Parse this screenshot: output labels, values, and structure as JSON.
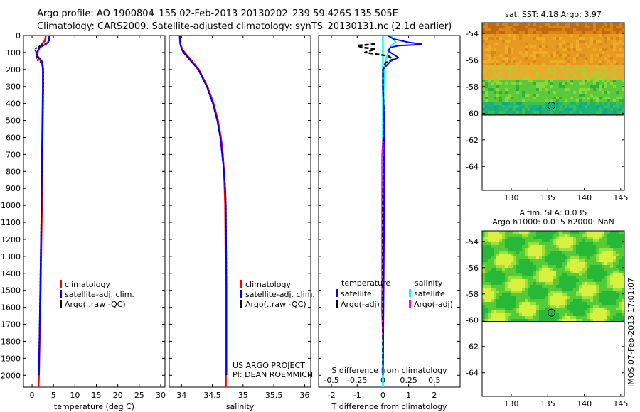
{
  "title_line1": "Argo profile: AO 1900804_155 02-Feb-2013 20130202_239 59.426S 135.505E",
  "title_line2": "Climatology: CARS2009. Satellite-adjusted climatology: synTS_20130131.nc (2.1d earlier)",
  "credit_line1": "US ARGO PROJECT",
  "credit_line2": "PI: DEAN ROEMMICH",
  "timestamp": "IMOS 07-Feb-2013 17:01:07",
  "colors": {
    "climatology": "#ff0000",
    "satellite": "#0000ff",
    "argo": "#000000",
    "sal_satellite": "#00ffff",
    "sal_argo": "#ff00ff"
  },
  "chart_data": [
    {
      "type": "line",
      "xlabel": "temperature (deg C)",
      "xlim": [
        -2,
        31
      ],
      "xticks": [
        0,
        5,
        10,
        15,
        20,
        25,
        30
      ],
      "ylim": [
        2070,
        0
      ],
      "yticks": [
        0,
        100,
        200,
        300,
        400,
        500,
        600,
        700,
        800,
        900,
        1000,
        1100,
        1200,
        1300,
        1400,
        1500,
        1600,
        1700,
        1800,
        1900,
        2000
      ],
      "legend": [
        "climatology",
        "satellite-adj. clim.",
        "Argo(..raw -QC)"
      ],
      "series": [
        {
          "name": "climatology",
          "depth": [
            0,
            30,
            60,
            90,
            120,
            140,
            160,
            200,
            300,
            500,
            700,
            1000,
            1500,
            2000,
            2070
          ],
          "values": [
            3.2,
            3.0,
            2.0,
            1.4,
            1.1,
            1.8,
            2.4,
            2.6,
            2.6,
            2.5,
            2.4,
            2.3,
            2.0,
            1.6,
            1.5
          ]
        },
        {
          "name": "satellite-adj. clim.",
          "depth": [
            0,
            30,
            50,
            70,
            90,
            110,
            130,
            150,
            200,
            300,
            500,
            700,
            1000,
            1500,
            2000
          ],
          "values": [
            4.0,
            4.0,
            3.3,
            1.8,
            1.3,
            1.0,
            1.6,
            2.3,
            2.5,
            2.5,
            2.4,
            2.3,
            2.2,
            1.9,
            1.6
          ]
        },
        {
          "name": "Argo(..raw -QC)",
          "depth": [
            10,
            40,
            60,
            80,
            100,
            120,
            140,
            160,
            200,
            300,
            500,
            700,
            1000,
            1500,
            1950
          ],
          "values": [
            3.9,
            3.8,
            2.0,
            0.6,
            1.0,
            1.2,
            1.0,
            2.2,
            2.6,
            2.6,
            2.5,
            2.4,
            2.2,
            1.9,
            1.6
          ]
        }
      ]
    },
    {
      "type": "line",
      "xlabel": "salinity",
      "xlim": [
        33.8,
        36.1
      ],
      "xticks": [
        34,
        34.5,
        35,
        35.5,
        36
      ],
      "ylim": [
        2070,
        0
      ],
      "legend": [
        "climatology",
        "satellite-adj. clim.",
        "Argo(..raw -QC)"
      ],
      "series": [
        {
          "name": "climatology",
          "depth": [
            0,
            50,
            80,
            100,
            150,
            200,
            300,
            400,
            500,
            600,
            700,
            800,
            900,
            1000,
            1500,
            2000,
            2070
          ],
          "values": [
            33.97,
            33.98,
            34.01,
            34.05,
            34.17,
            34.28,
            34.42,
            34.52,
            34.59,
            34.64,
            34.67,
            34.69,
            34.7,
            34.71,
            34.72,
            34.72,
            34.72
          ]
        },
        {
          "name": "satellite-adj. clim.",
          "depth": [
            0,
            50,
            80,
            100,
            150,
            200,
            300,
            400,
            500,
            600,
            700,
            800,
            900,
            1000,
            1500,
            2000
          ],
          "values": [
            33.97,
            33.98,
            34.0,
            34.03,
            34.15,
            34.27,
            34.41,
            34.51,
            34.58,
            34.63,
            34.66,
            34.69,
            34.71,
            34.72,
            34.73,
            34.73
          ]
        },
        {
          "name": "Argo(..raw -QC)",
          "depth": [
            10,
            50,
            80,
            100,
            150,
            200,
            300,
            400,
            500,
            600,
            700,
            800,
            900,
            1000,
            1500,
            1950
          ],
          "values": [
            33.97,
            33.98,
            34.0,
            34.04,
            34.16,
            34.27,
            34.41,
            34.51,
            34.58,
            34.63,
            34.66,
            34.69,
            34.71,
            34.72,
            34.73,
            34.73
          ]
        }
      ]
    },
    {
      "type": "line",
      "xlabel": "T difference from climatology",
      "x2label": "S difference from climatology",
      "xlim": [
        -2.5,
        3
      ],
      "xticks": [
        -2,
        -1,
        0,
        1,
        2
      ],
      "x2ticks": [
        "-0.5",
        "-0.25",
        "0",
        "0.25",
        "0.5"
      ],
      "x2tick_values": [
        -2,
        -1,
        0,
        1,
        2
      ],
      "ylim": [
        2070,
        0
      ],
      "legend_groups": [
        "temperature",
        "salinity"
      ],
      "legend": [
        "satellite",
        "Argo(-adj)",
        "satellite",
        "Argo(-adj)"
      ],
      "series": [
        {
          "name": "temperature satellite",
          "depth": [
            0,
            20,
            40,
            50,
            55,
            60,
            70,
            90,
            110,
            130,
            150,
            200,
            300,
            500,
            1000,
            1500,
            2000
          ],
          "values": [
            0.2,
            0.4,
            1.0,
            1.5,
            1.2,
            0.6,
            0.3,
            0.2,
            0.4,
            0.6,
            0.3,
            0.0,
            0.0,
            0.05,
            0.05,
            0.03,
            0.0
          ]
        },
        {
          "name": "temperature Argo(-adj)",
          "depth": [
            50,
            55,
            60,
            70,
            80,
            100,
            120,
            140,
            160,
            200,
            300,
            500,
            1000,
            1500,
            1950
          ],
          "values": [
            -0.3,
            -0.7,
            -1.0,
            -0.8,
            -0.3,
            -0.7,
            0.2,
            0.4,
            0.1,
            0.0,
            0.0,
            0.05,
            0.0,
            0.0,
            0.0
          ]
        },
        {
          "name": "salinity satellite",
          "depth": [
            0,
            40,
            60,
            100,
            150,
            200,
            400,
            1000,
            1500,
            2000
          ],
          "values": [
            0.3,
            0.5,
            0.3,
            0.2,
            0.1,
            0.05,
            0.02,
            0.0,
            0.0,
            0.0
          ]
        },
        {
          "name": "salinity Argo(-adj)",
          "depth": [
            600,
            700,
            1500,
            1600,
            1800
          ],
          "values": [
            0.0,
            -0.04,
            -0.04,
            -0.05,
            0.0
          ]
        }
      ]
    },
    {
      "type": "heatmap",
      "title": "sat. SST: 4.18 Argo: 3.97",
      "xlim": [
        126,
        145.5
      ],
      "ylim": [
        -65.8,
        -53.2
      ],
      "xticks": [
        130,
        135,
        140,
        145
      ],
      "yticks": [
        -54,
        -56,
        -58,
        -60,
        -62,
        -64
      ],
      "marker": {
        "lon": 135.505,
        "lat": -59.426
      }
    },
    {
      "type": "heatmap",
      "title_line1": "Altim. SLA: 0.035",
      "title_line2": "Argo h1000: 0.015 h2000: NaN",
      "xlim": [
        126,
        145.5
      ],
      "ylim": [
        -65.8,
        -53.2
      ],
      "xticks": [
        130,
        135,
        140,
        145
      ],
      "yticks": [
        -54,
        -56,
        -58,
        -60,
        -62,
        -64
      ],
      "marker": {
        "lon": 135.505,
        "lat": -59.426
      }
    }
  ]
}
